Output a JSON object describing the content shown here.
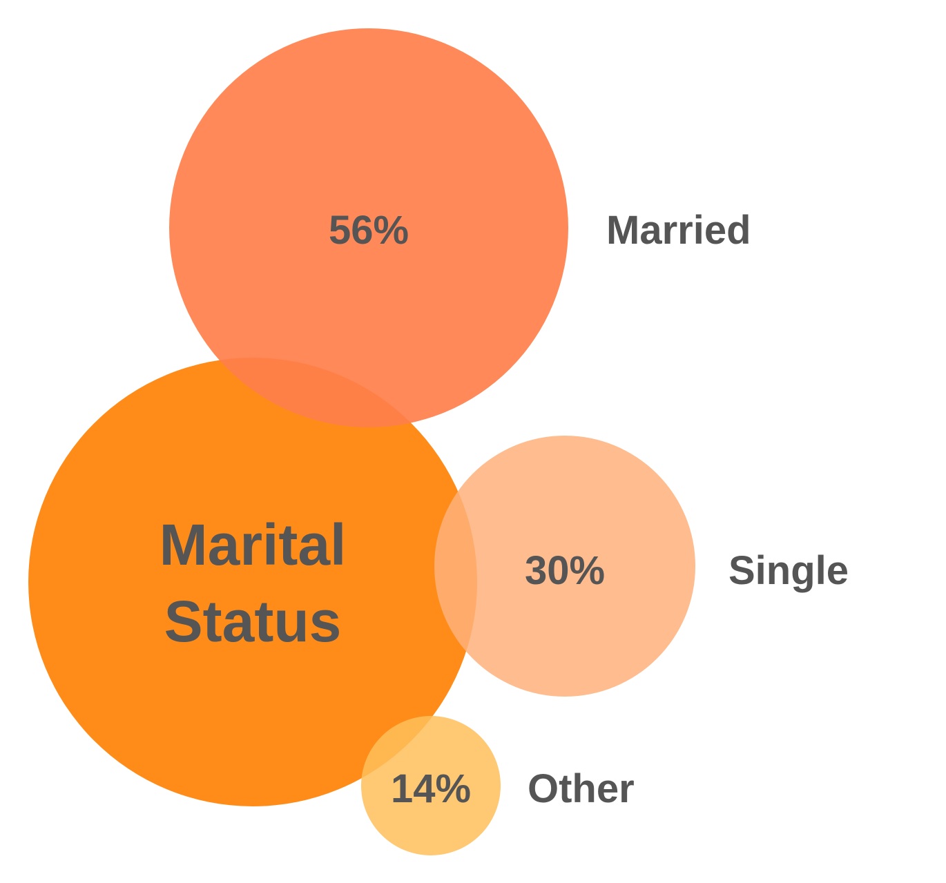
{
  "chart_data": {
    "type": "bubble",
    "title_lines": [
      "Marital",
      "Status"
    ],
    "series": [
      {
        "name": "Married",
        "value": 56,
        "value_label": "56%",
        "color": "#FF7F4A",
        "opacity": 0.92
      },
      {
        "name": "Single",
        "value": 30,
        "value_label": "30%",
        "color": "#FFB07A",
        "opacity": 0.85
      },
      {
        "name": "Other",
        "value": 14,
        "value_label": "14%",
        "color": "#FFBE5A",
        "opacity": 0.85
      }
    ],
    "title_bubble_color": "#FF8000",
    "text_color": "#555555"
  }
}
